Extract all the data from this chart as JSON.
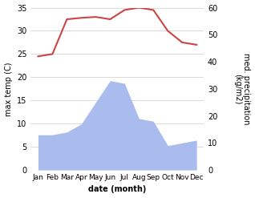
{
  "months": [
    "Jan",
    "Feb",
    "Mar",
    "Apr",
    "May",
    "Jun",
    "Jul",
    "Aug",
    "Sep",
    "Oct",
    "Nov",
    "Dec"
  ],
  "temperature": [
    24.5,
    25.0,
    32.5,
    32.8,
    33.0,
    32.5,
    34.5,
    35.0,
    34.5,
    30.0,
    27.5,
    27.0
  ],
  "rainfall": [
    13,
    13,
    14,
    17,
    25,
    33,
    32,
    19,
    18,
    9,
    10,
    11
  ],
  "temp_color": "#cc4444",
  "rain_color": "#aabbee",
  "ylabel_left": "max temp (C)",
  "ylabel_right": "med. precipitation\n(kg/m2)",
  "xlabel": "date (month)",
  "ylim_left": [
    0,
    35
  ],
  "ylim_right": [
    0,
    60
  ],
  "yticks_left": [
    0,
    5,
    10,
    15,
    20,
    25,
    30,
    35
  ],
  "yticks_right": [
    0,
    10,
    20,
    30,
    40,
    50,
    60
  ],
  "bg_color": "#ffffff",
  "temp_linewidth": 1.5,
  "fig_width": 3.18,
  "fig_height": 2.47,
  "dpi": 100
}
